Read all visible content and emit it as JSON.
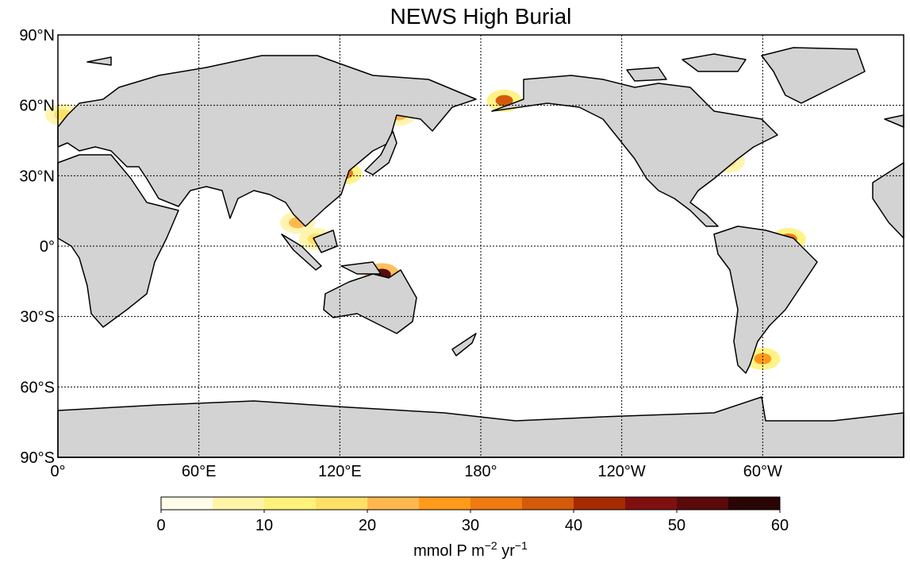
{
  "map": {
    "title": "NEWS High Burial",
    "lonlim": [
      0,
      360
    ],
    "latlim": [
      -90,
      90
    ],
    "lonticks": [
      {
        "value": 0,
        "label": "0°"
      },
      {
        "value": 60,
        "label": "60°E"
      },
      {
        "value": 120,
        "label": "120°E"
      },
      {
        "value": 180,
        "label": "180°"
      },
      {
        "value": 240,
        "label": "120°W"
      },
      {
        "value": 300,
        "label": "60°W"
      }
    ],
    "latticks": [
      {
        "value": 90,
        "label": "90°N"
      },
      {
        "value": 60,
        "label": "60°N"
      },
      {
        "value": 30,
        "label": "30°N"
      },
      {
        "value": 0,
        "label": "0°"
      },
      {
        "value": -30,
        "label": "30°S"
      },
      {
        "value": -60,
        "label": "60°S"
      },
      {
        "value": -90,
        "label": "90°S"
      }
    ],
    "grid": true,
    "hotspots": [
      {
        "lon": 138,
        "lat": -12,
        "value": 50
      },
      {
        "lon": 122,
        "lat": 31,
        "value": 30
      },
      {
        "lon": 190,
        "lat": 62,
        "value": 35
      },
      {
        "lon": 145,
        "lat": 56,
        "value": 20
      },
      {
        "lon": 300,
        "lat": -48,
        "value": 25
      },
      {
        "lon": 311,
        "lat": 3,
        "value": 30
      },
      {
        "lon": 102,
        "lat": 10,
        "value": 20
      },
      {
        "lon": 110,
        "lat": 3,
        "value": 15
      },
      {
        "lon": 285,
        "lat": 36,
        "value": 15
      },
      {
        "lon": 2,
        "lat": 56,
        "value": 15
      }
    ],
    "colorbar": {
      "bounds": [
        0,
        5,
        10,
        15,
        20,
        25,
        30,
        35,
        40,
        45,
        50,
        55,
        60
      ],
      "colors": [
        "#fffde8",
        "#fff4a8",
        "#fff27a",
        "#ffe066",
        "#ffb84d",
        "#ff9a1a",
        "#f07a10",
        "#d45a0a",
        "#a52a00",
        "#801010",
        "#5a0a0a",
        "#2a0505"
      ],
      "lim": [
        0,
        60
      ],
      "ticks": [
        0,
        10,
        20,
        30,
        40,
        50,
        60
      ],
      "label": [
        "mmol P m",
        "−2",
        " yr",
        "−1"
      ]
    }
  }
}
